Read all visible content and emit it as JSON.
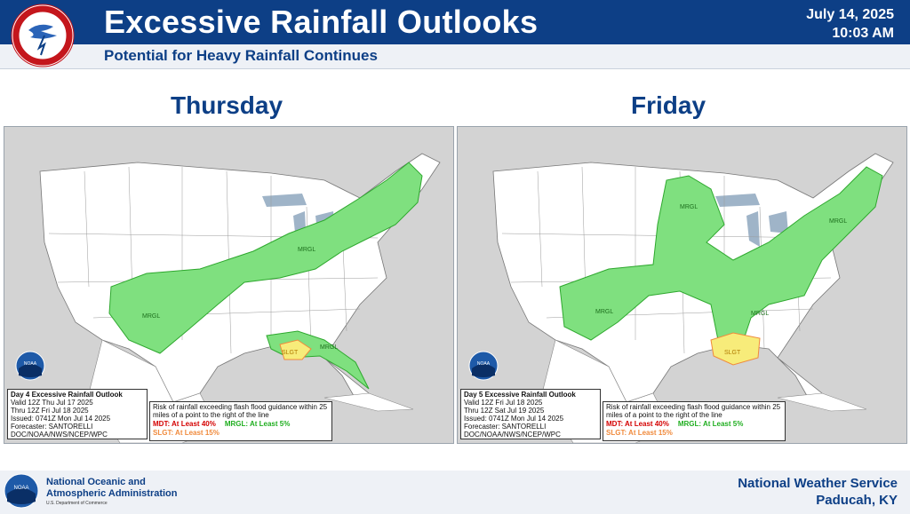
{
  "header": {
    "title": "Excessive Rainfall Outlooks",
    "subtitle": "Potential for Heavy Rainfall Continues",
    "date": "July 14, 2025",
    "time": "10:03 AM",
    "logo_text": "NATIONAL WEATHER SERVICE"
  },
  "panels": [
    {
      "day": "Thursday",
      "outlook_title": "Day 4 Excessive Rainfall Outlook",
      "valid_line": "Valid 12Z Thu Jul 17 2025",
      "thru_line": "Thru 12Z Fri Jul 18 2025",
      "issued": "Issued: 0741Z Mon Jul 14 2025",
      "forecaster": "Forecaster: SANTORELLI",
      "office": "DOC/NOAA/NWS/NCEP/WPC",
      "risk_labels": [
        "MRGL",
        "MRGL",
        "MRGL",
        "SLGT"
      ]
    },
    {
      "day": "Friday",
      "outlook_title": "Day 5 Excessive Rainfall Outlook",
      "valid_line": "Valid 12Z Fri Jul 18 2025",
      "thru_line": "Thru 12Z Sat Jul 19 2025",
      "issued": "Issued: 0741Z Mon Jul 14 2025",
      "forecaster": "Forecaster: SANTORELLI",
      "office": "DOC/NOAA/NWS/NCEP/WPC",
      "risk_labels": [
        "MRGL",
        "MRGL",
        "MRGL",
        "MRGL",
        "SLGT"
      ]
    }
  ],
  "legend": {
    "description": "Risk of rainfall exceeding flash flood guidance within 25 miles of a point to the right of the line",
    "mdt": "MDT: At Least 40%",
    "mrgl": "MRGL: At Least 5%",
    "slgt": "SLGT: At Least 15%"
  },
  "noaa_logo_text": "NOAA",
  "footer": {
    "agency_line1": "National Oceanic and",
    "agency_line2": "Atmospheric Administration",
    "dept": "U.S. Department of Commerce",
    "office_line1": "National Weather Service",
    "office_line2": "Paducah, KY"
  },
  "colors": {
    "header_blue": "#0d3f86",
    "mrgl_fill": "#7fe07f",
    "slgt_fill": "#f7ec7a",
    "land": "#ffffff",
    "water": "#d6dee8"
  }
}
